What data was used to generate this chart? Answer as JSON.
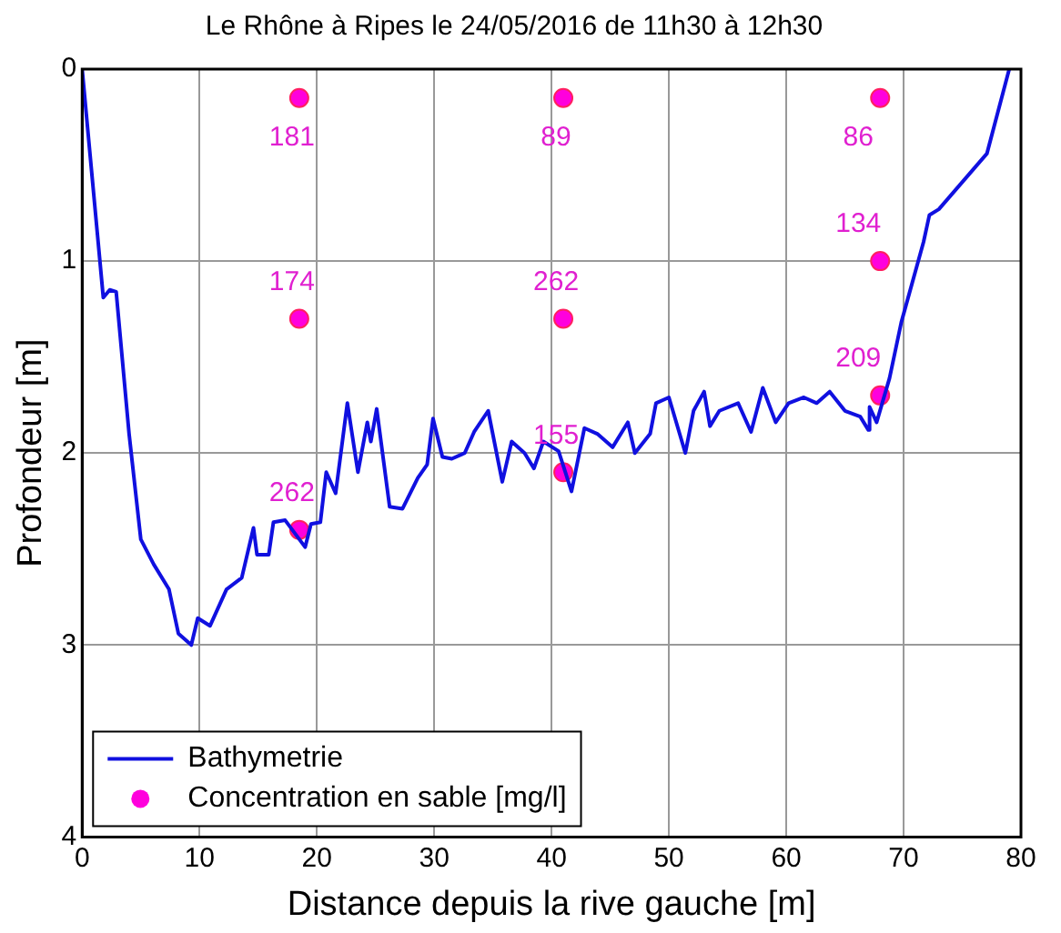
{
  "chart_data": {
    "type": "line",
    "title": "Le Rhône à Ripes le 24/05/2016 de 11h30 à 12h30",
    "xlabel": "Distance depuis la rive gauche [m]",
    "ylabel": "Profondeur [m]",
    "xlim": [
      0,
      80
    ],
    "xticks": [
      0,
      10,
      20,
      30,
      40,
      50,
      60,
      70,
      80
    ],
    "ylim": [
      4,
      0
    ],
    "yticks": [
      0,
      1,
      2,
      3,
      4
    ],
    "grid": true,
    "legend": "bottom left",
    "series": [
      {
        "name": "Bathymetrie",
        "color": "#1010e0",
        "marker": "none",
        "x": [
          0,
          1.8,
          2.35,
          2.9,
          4.0,
          5.0,
          6.1,
          7.4,
          8.2,
          9.3,
          9.85,
          10.9,
          12.3,
          13.6,
          14.6,
          14.9,
          15.9,
          16.3,
          17.3,
          19.0,
          19.5,
          20.3,
          20.8,
          21.6,
          22.6,
          23.5,
          24.3,
          24.6,
          25.1,
          26.2,
          27.3,
          28.6,
          29.4,
          29.9,
          30.7,
          31.5,
          32.6,
          33.4,
          34.6,
          35.8,
          36.6,
          37.7,
          38.5,
          39.3,
          40.6,
          41.7,
          42.8,
          43.9,
          45.2,
          46.5,
          47.1,
          48.4,
          48.9,
          50.0,
          51.4,
          52.1,
          53.0,
          53.5,
          54.3,
          55.9,
          57.0,
          58.0,
          59.1,
          60.2,
          61.5,
          62.6,
          63.7,
          65.0,
          66.3,
          67.0,
          67.1,
          67.7,
          68.8,
          69.8,
          71.7,
          72.2,
          73.0,
          77.1,
          79.0
        ],
        "values": [
          0,
          1.19,
          1.15,
          1.16,
          1.9,
          2.45,
          2.58,
          2.71,
          2.94,
          3.0,
          2.86,
          2.9,
          2.71,
          2.65,
          2.39,
          2.53,
          2.53,
          2.36,
          2.35,
          2.49,
          2.37,
          2.36,
          2.1,
          2.21,
          1.74,
          2.1,
          1.84,
          1.94,
          1.77,
          2.28,
          2.29,
          2.13,
          2.06,
          1.82,
          2.02,
          2.03,
          2.0,
          1.89,
          1.78,
          2.15,
          1.94,
          2.0,
          2.08,
          1.94,
          1.99,
          2.2,
          1.87,
          1.9,
          1.97,
          1.84,
          2.0,
          1.9,
          1.74,
          1.71,
          2.0,
          1.78,
          1.68,
          1.86,
          1.78,
          1.74,
          1.89,
          1.66,
          1.84,
          1.74,
          1.71,
          1.74,
          1.68,
          1.78,
          1.81,
          1.88,
          1.76,
          1.84,
          1.61,
          1.32,
          0.9,
          0.76,
          0.73,
          0.44,
          0
        ]
      },
      {
        "name": "Concentration en sable [mg/l]",
        "type": "scatter",
        "color": "#ff00dd",
        "marker": "circle",
        "x": [
          18.5,
          18.5,
          18.5,
          41,
          41,
          41,
          68,
          68,
          68
        ],
        "values": [
          0.15,
          1.3,
          2.4,
          0.15,
          1.3,
          2.1,
          0.15,
          1.0,
          1.7
        ]
      }
    ],
    "annotations": [
      "181",
      "174",
      "262",
      "89",
      "262",
      "155",
      "86",
      "134",
      "209"
    ]
  }
}
